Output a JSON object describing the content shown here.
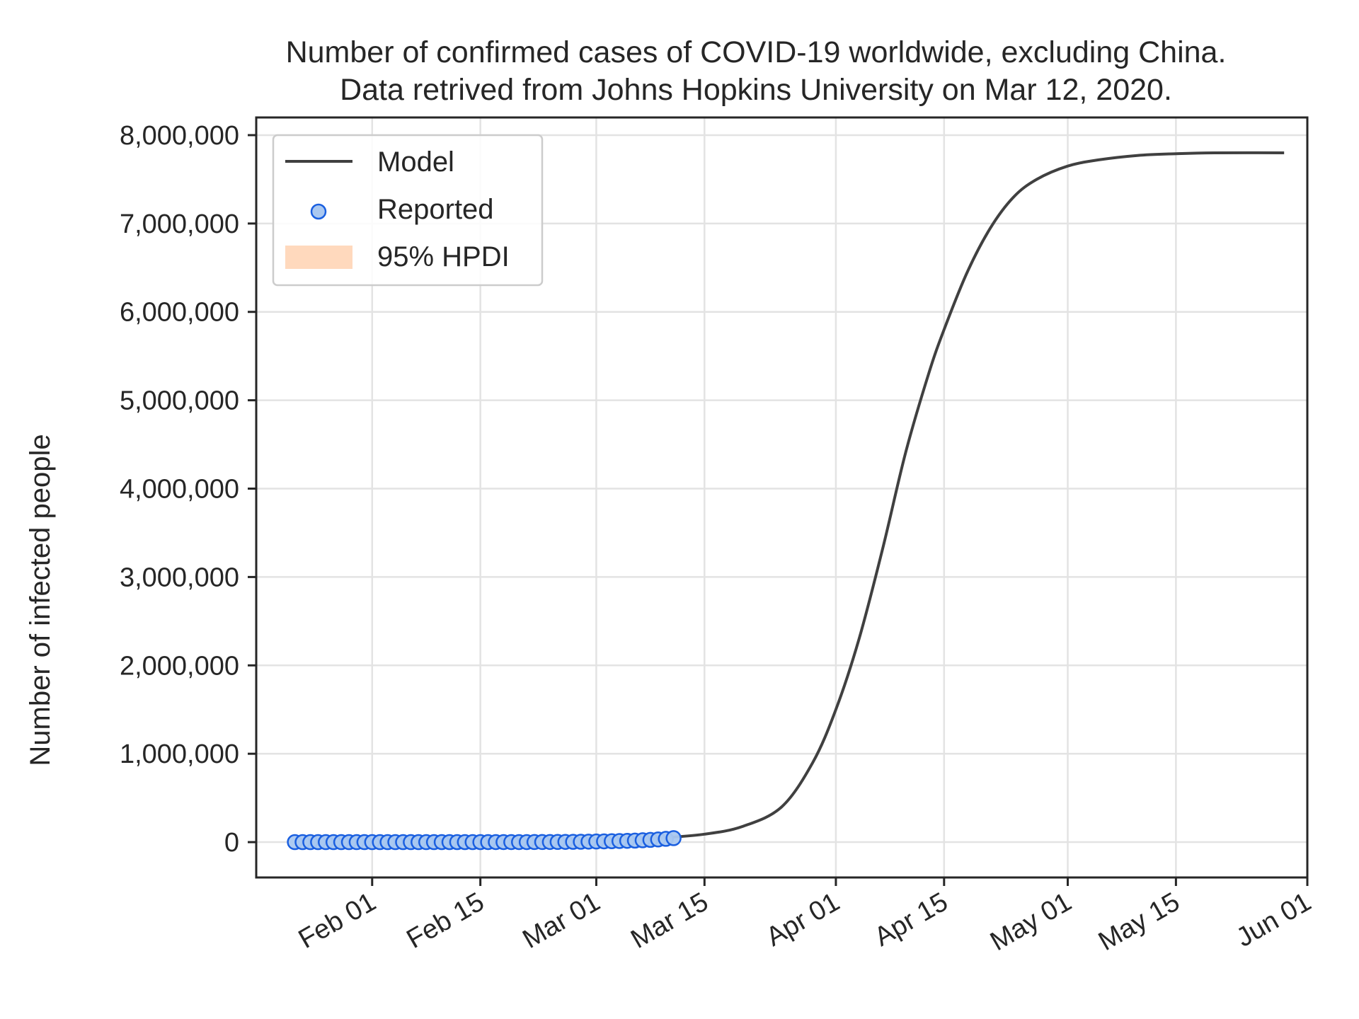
{
  "chart_data": {
    "type": "line",
    "title": [
      "Number of confirmed cases of COVID-19 worldwide, excluding China.",
      "Data retrived from Johns Hopkins University on Mar 12, 2020."
    ],
    "xlabel": "",
    "ylabel": "Number of infected people",
    "x_axis_type": "date",
    "xlim": [
      "2020-01-17",
      "2020-06-01"
    ],
    "ylim": [
      -400000,
      8200000
    ],
    "x_ticks": [
      "2020-02-01",
      "2020-02-15",
      "2020-03-01",
      "2020-03-15",
      "2020-04-01",
      "2020-04-15",
      "2020-05-01",
      "2020-05-15",
      "2020-06-01"
    ],
    "x_tick_labels": [
      "Feb 01",
      "Feb 15",
      "Mar 01",
      "Mar 15",
      "Apr 01",
      "Apr 15",
      "May 01",
      "May 15",
      "Jun 01"
    ],
    "y_ticks": [
      0,
      1000000,
      2000000,
      3000000,
      4000000,
      5000000,
      6000000,
      7000000,
      8000000
    ],
    "y_tick_labels": [
      "0",
      "1,000,000",
      "2,000,000",
      "3,000,000",
      "4,000,000",
      "5,000,000",
      "6,000,000",
      "7,000,000",
      "8,000,000"
    ],
    "grid": true,
    "legend_position": "top-left",
    "legend": [
      {
        "label": "Model",
        "kind": "line",
        "color": "#404040"
      },
      {
        "label": "Reported",
        "kind": "marker",
        "color": "#1a5fe0"
      },
      {
        "label": "95% HPDI",
        "kind": "patch",
        "color": "#ffd9bd"
      }
    ],
    "series": [
      {
        "name": "Model",
        "kind": "line",
        "color": "#404040",
        "x": [
          "2020-01-22",
          "2020-02-01",
          "2020-02-15",
          "2020-03-01",
          "2020-03-08",
          "2020-03-15",
          "2020-03-20",
          "2020-03-25",
          "2020-03-29",
          "2020-04-01",
          "2020-04-04",
          "2020-04-07",
          "2020-04-10",
          "2020-04-13",
          "2020-04-15",
          "2020-04-18",
          "2020-04-21",
          "2020-04-24",
          "2020-04-27",
          "2020-05-01",
          "2020-05-05",
          "2020-05-10",
          "2020-05-15",
          "2020-05-20",
          "2020-05-29"
        ],
        "y": [
          0,
          0,
          2000,
          15000,
          40000,
          90000,
          180000,
          400000,
          900000,
          1500000,
          2300000,
          3300000,
          4400000,
          5300000,
          5800000,
          6450000,
          6950000,
          7300000,
          7500000,
          7650000,
          7720000,
          7770000,
          7790000,
          7800000,
          7800000
        ]
      },
      {
        "name": "Reported",
        "kind": "scatter",
        "color": "#1a5fe0",
        "fill": "#aac8f0",
        "x": [
          "2020-01-22",
          "2020-01-23",
          "2020-01-24",
          "2020-01-25",
          "2020-01-26",
          "2020-01-27",
          "2020-01-28",
          "2020-01-29",
          "2020-01-30",
          "2020-01-31",
          "2020-02-01",
          "2020-02-02",
          "2020-02-03",
          "2020-02-04",
          "2020-02-05",
          "2020-02-06",
          "2020-02-07",
          "2020-02-08",
          "2020-02-09",
          "2020-02-10",
          "2020-02-11",
          "2020-02-12",
          "2020-02-13",
          "2020-02-14",
          "2020-02-15",
          "2020-02-16",
          "2020-02-17",
          "2020-02-18",
          "2020-02-19",
          "2020-02-20",
          "2020-02-21",
          "2020-02-22",
          "2020-02-23",
          "2020-02-24",
          "2020-02-25",
          "2020-02-26",
          "2020-02-27",
          "2020-02-28",
          "2020-02-29",
          "2020-03-01",
          "2020-03-02",
          "2020-03-03",
          "2020-03-04",
          "2020-03-05",
          "2020-03-06",
          "2020-03-07",
          "2020-03-08",
          "2020-03-09",
          "2020-03-10",
          "2020-03-11"
        ],
        "y": [
          7,
          12,
          18,
          25,
          40,
          55,
          70,
          85,
          100,
          130,
          150,
          170,
          190,
          210,
          230,
          260,
          290,
          320,
          350,
          380,
          400,
          420,
          450,
          480,
          510,
          530,
          550,
          560,
          580,
          620,
          720,
          900,
          1300,
          1800,
          2300,
          2800,
          3500,
          4400,
          5800,
          7200,
          8800,
          10500,
          12800,
          14800,
          17500,
          21000,
          25500,
          30000,
          37000,
          45000
        ]
      }
    ]
  }
}
